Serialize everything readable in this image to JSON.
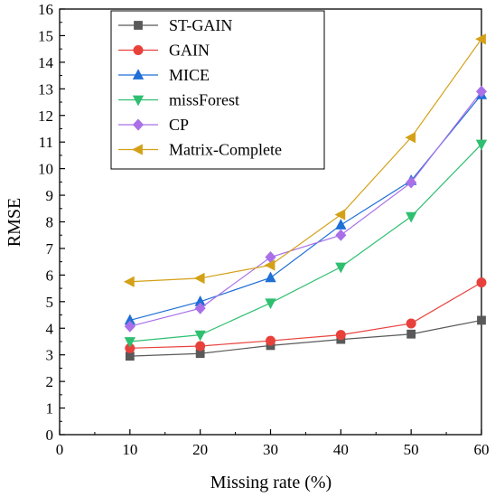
{
  "chart_data": {
    "type": "line",
    "title": "",
    "xlabel": "Missing rate (%)",
    "ylabel": "RMSE",
    "x": [
      10,
      20,
      30,
      40,
      50,
      60
    ],
    "xlim": [
      0,
      60
    ],
    "ylim": [
      0,
      16
    ],
    "xticks": [
      "0",
      "10",
      "20",
      "30",
      "40",
      "50",
      "60"
    ],
    "yticks": [
      "0",
      "1",
      "2",
      "3",
      "4",
      "5",
      "6",
      "7",
      "8",
      "9",
      "10",
      "11",
      "12",
      "13",
      "14",
      "15",
      "16"
    ],
    "grid": false,
    "legend_position": "top-left",
    "series": [
      {
        "name": "ST-GAIN",
        "color": "#595959",
        "marker": "square",
        "values": [
          2.95,
          3.05,
          3.35,
          3.58,
          3.78,
          4.3
        ]
      },
      {
        "name": "GAIN",
        "color": "#e8413c",
        "marker": "circle",
        "values": [
          3.25,
          3.33,
          3.53,
          3.75,
          4.18,
          5.72
        ]
      },
      {
        "name": "MICE",
        "color": "#1f6fd6",
        "marker": "triangle-up",
        "values": [
          4.3,
          5.0,
          5.9,
          7.88,
          9.55,
          12.78
        ]
      },
      {
        "name": "missForest",
        "color": "#2fbf71",
        "marker": "triangle-down",
        "values": [
          3.5,
          3.75,
          4.95,
          6.3,
          8.2,
          10.92
        ]
      },
      {
        "name": "CP",
        "color": "#a970e8",
        "marker": "diamond",
        "values": [
          4.07,
          4.75,
          6.67,
          7.5,
          9.48,
          12.9
        ]
      },
      {
        "name": "Matrix-Complete",
        "color": "#d4a017",
        "marker": "triangle-left",
        "values": [
          5.75,
          5.88,
          6.37,
          8.27,
          11.17,
          14.87
        ]
      }
    ]
  }
}
